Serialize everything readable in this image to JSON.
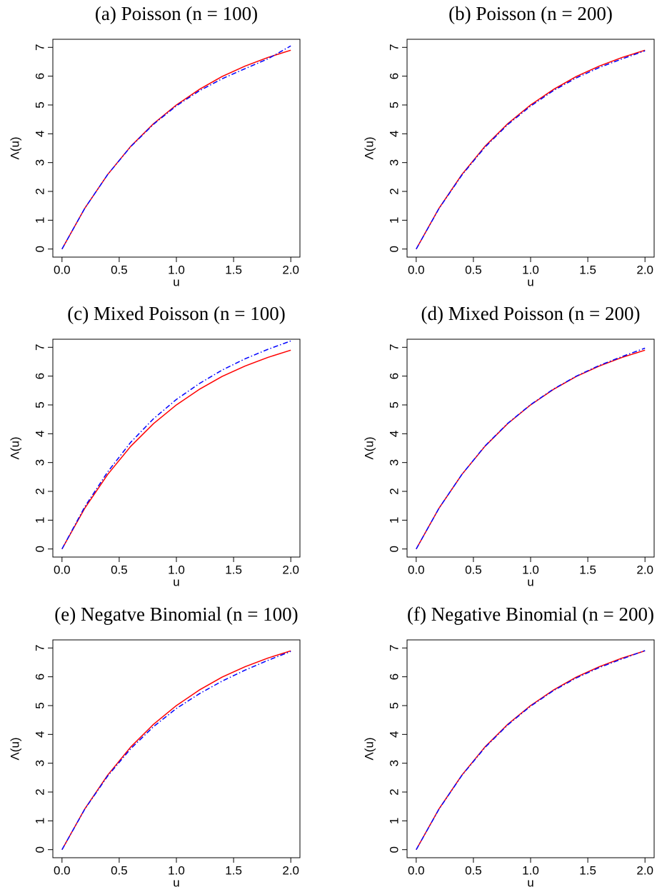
{
  "chart_data": [
    {
      "type": "line",
      "title": "(a) Poisson (n = 100)",
      "x_label": "u",
      "y_label": "Λ(u)",
      "x": [
        0,
        0.2,
        0.4,
        0.6,
        0.8,
        1.0,
        1.2,
        1.4,
        1.6,
        1.8,
        2.0
      ],
      "series": [
        {
          "color": "#ff0000",
          "dash": "solid",
          "values": [
            0,
            1.42,
            2.59,
            3.56,
            4.35,
            5.0,
            5.54,
            5.99,
            6.35,
            6.65,
            6.9
          ]
        },
        {
          "color": "#0000ff",
          "dash": "dashdot",
          "values": [
            0,
            1.42,
            2.59,
            3.55,
            4.33,
            4.97,
            5.49,
            5.91,
            6.26,
            6.6,
            7.05
          ]
        }
      ],
      "xlim": [
        -0.08,
        2.08
      ],
      "ylim": [
        -0.28,
        7.28
      ],
      "xticks": [
        {
          "value": 0,
          "label": "0.0"
        },
        {
          "value": 0.5,
          "label": "0.5"
        },
        {
          "value": 1,
          "label": "1.0"
        },
        {
          "value": 1.5,
          "label": "1.5"
        },
        {
          "value": 2,
          "label": "2.0"
        }
      ],
      "yticks": [
        0,
        1,
        2,
        3,
        4,
        5,
        6,
        7
      ]
    },
    {
      "type": "line",
      "title": "(b) Poisson (n = 200)",
      "x_label": "u",
      "y_label": "Λ(u)",
      "x": [
        0,
        0.2,
        0.4,
        0.6,
        0.8,
        1.0,
        1.2,
        1.4,
        1.6,
        1.8,
        2.0
      ],
      "series": [
        {
          "color": "#ff0000",
          "dash": "solid",
          "values": [
            0,
            1.42,
            2.59,
            3.56,
            4.35,
            5.0,
            5.54,
            5.99,
            6.35,
            6.65,
            6.9
          ]
        },
        {
          "color": "#0000ff",
          "dash": "dashdot",
          "values": [
            0,
            1.41,
            2.57,
            3.53,
            4.32,
            4.96,
            5.5,
            5.94,
            6.3,
            6.6,
            6.88
          ]
        }
      ],
      "xlim": [
        -0.08,
        2.08
      ],
      "ylim": [
        -0.28,
        7.28
      ],
      "xticks": [
        {
          "value": 0,
          "label": "0.0"
        },
        {
          "value": 0.5,
          "label": "0.5"
        },
        {
          "value": 1,
          "label": "1.0"
        },
        {
          "value": 1.5,
          "label": "1.5"
        },
        {
          "value": 2,
          "label": "2.0"
        }
      ],
      "yticks": [
        0,
        1,
        2,
        3,
        4,
        5,
        6,
        7
      ]
    },
    {
      "type": "line",
      "title": "(c) Mixed Poisson (n = 100)",
      "x_label": "u",
      "y_label": "Λ(u)",
      "x": [
        0,
        0.2,
        0.4,
        0.6,
        0.8,
        1.0,
        1.2,
        1.4,
        1.6,
        1.8,
        2.0
      ],
      "series": [
        {
          "color": "#ff0000",
          "dash": "solid",
          "values": [
            0,
            1.42,
            2.59,
            3.56,
            4.35,
            5.0,
            5.54,
            5.99,
            6.35,
            6.65,
            6.9
          ]
        },
        {
          "color": "#0000ff",
          "dash": "dashdot",
          "values": [
            0,
            1.47,
            2.68,
            3.7,
            4.52,
            5.19,
            5.74,
            6.21,
            6.6,
            6.93,
            7.22
          ]
        }
      ],
      "xlim": [
        -0.08,
        2.08
      ],
      "ylim": [
        -0.28,
        7.28
      ],
      "xticks": [
        {
          "value": 0,
          "label": "0.0"
        },
        {
          "value": 0.5,
          "label": "0.5"
        },
        {
          "value": 1,
          "label": "1.0"
        },
        {
          "value": 1.5,
          "label": "1.5"
        },
        {
          "value": 2,
          "label": "2.0"
        }
      ],
      "yticks": [
        0,
        1,
        2,
        3,
        4,
        5,
        6,
        7
      ]
    },
    {
      "type": "line",
      "title": "(d) Mixed Poisson (n = 200)",
      "x_label": "u",
      "y_label": "Λ(u)",
      "x": [
        0,
        0.2,
        0.4,
        0.6,
        0.8,
        1.0,
        1.2,
        1.4,
        1.6,
        1.8,
        2.0
      ],
      "series": [
        {
          "color": "#ff0000",
          "dash": "solid",
          "values": [
            0,
            1.42,
            2.59,
            3.56,
            4.35,
            5.0,
            5.54,
            5.99,
            6.35,
            6.65,
            6.9
          ]
        },
        {
          "color": "#0000ff",
          "dash": "dashdot",
          "values": [
            0,
            1.42,
            2.59,
            3.57,
            4.36,
            5.01,
            5.55,
            6.0,
            6.37,
            6.68,
            6.97
          ]
        }
      ],
      "xlim": [
        -0.08,
        2.08
      ],
      "ylim": [
        -0.28,
        7.28
      ],
      "xticks": [
        {
          "value": 0,
          "label": "0.0"
        },
        {
          "value": 0.5,
          "label": "0.5"
        },
        {
          "value": 1,
          "label": "1.0"
        },
        {
          "value": 1.5,
          "label": "1.5"
        },
        {
          "value": 2,
          "label": "2.0"
        }
      ],
      "yticks": [
        0,
        1,
        2,
        3,
        4,
        5,
        6,
        7
      ]
    },
    {
      "type": "line",
      "title": "(e) Negatve Binomial (n = 100)",
      "x_label": "u",
      "y_label": "Λ(u)",
      "x": [
        0,
        0.2,
        0.4,
        0.6,
        0.8,
        1.0,
        1.2,
        1.4,
        1.6,
        1.8,
        2.0
      ],
      "series": [
        {
          "color": "#ff0000",
          "dash": "solid",
          "values": [
            0,
            1.42,
            2.59,
            3.56,
            4.35,
            5.0,
            5.54,
            5.99,
            6.35,
            6.65,
            6.9
          ]
        },
        {
          "color": "#0000ff",
          "dash": "dashdot",
          "values": [
            0,
            1.41,
            2.56,
            3.5,
            4.27,
            4.9,
            5.41,
            5.85,
            6.23,
            6.57,
            6.88
          ]
        }
      ],
      "xlim": [
        -0.08,
        2.08
      ],
      "ylim": [
        -0.28,
        7.28
      ],
      "xticks": [
        {
          "value": 0,
          "label": "0.0"
        },
        {
          "value": 0.5,
          "label": "0.5"
        },
        {
          "value": 1,
          "label": "1.0"
        },
        {
          "value": 1.5,
          "label": "1.5"
        },
        {
          "value": 2,
          "label": "2.0"
        }
      ],
      "yticks": [
        0,
        1,
        2,
        3,
        4,
        5,
        6,
        7
      ]
    },
    {
      "type": "line",
      "title": "(f) Negative Binomial (n = 200)",
      "x_label": "u",
      "y_label": "Λ(u)",
      "x": [
        0,
        0.2,
        0.4,
        0.6,
        0.8,
        1.0,
        1.2,
        1.4,
        1.6,
        1.8,
        2.0
      ],
      "series": [
        {
          "color": "#ff0000",
          "dash": "solid",
          "values": [
            0,
            1.42,
            2.59,
            3.56,
            4.35,
            5.0,
            5.54,
            5.99,
            6.35,
            6.65,
            6.9
          ]
        },
        {
          "color": "#0000ff",
          "dash": "dashdot",
          "values": [
            0,
            1.41,
            2.58,
            3.54,
            4.33,
            4.98,
            5.52,
            5.96,
            6.32,
            6.62,
            6.91
          ]
        }
      ],
      "xlim": [
        -0.08,
        2.08
      ],
      "ylim": [
        -0.28,
        7.28
      ],
      "xticks": [
        {
          "value": 0,
          "label": "0.0"
        },
        {
          "value": 0.5,
          "label": "0.5"
        },
        {
          "value": 1,
          "label": "1.0"
        },
        {
          "value": 1.5,
          "label": "1.5"
        },
        {
          "value": 2,
          "label": "2.0"
        }
      ],
      "yticks": [
        0,
        1,
        2,
        3,
        4,
        5,
        6,
        7
      ]
    }
  ]
}
